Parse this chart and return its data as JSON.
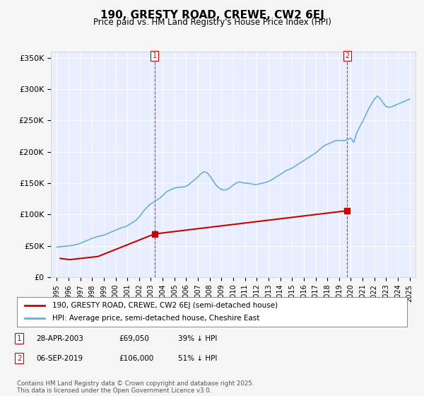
{
  "title": "190, GRESTY ROAD, CREWE, CW2 6EJ",
  "subtitle": "Price paid vs. HM Land Registry's House Price Index (HPI)",
  "hpi_color": "#6baed6",
  "price_color": "#cc0000",
  "dashed_line_color": "#cc0000",
  "background_color": "#f0f4ff",
  "plot_bg_color": "#e8eeff",
  "ylabel": "",
  "ylim": [
    0,
    360000
  ],
  "yticks": [
    0,
    50000,
    100000,
    150000,
    200000,
    250000,
    300000,
    350000
  ],
  "ytick_labels": [
    "£0",
    "£50K",
    "£100K",
    "£150K",
    "£200K",
    "£250K",
    "£300K",
    "£350K"
  ],
  "marker1_x": 2003.32,
  "marker1_price": 69050,
  "marker1_label": "1",
  "marker2_x": 2019.68,
  "marker2_price": 106000,
  "marker2_label": "2",
  "legend_line1": "190, GRESTY ROAD, CREWE, CW2 6EJ (semi-detached house)",
  "legend_line2": "HPI: Average price, semi-detached house, Cheshire East",
  "annotation1": "1    28-APR-2003         £69,050         39% ↓ HPI",
  "annotation2": "2    06-SEP-2019         £106,000        51% ↓ HPI",
  "footer": "Contains HM Land Registry data © Crown copyright and database right 2025.\nThis data is licensed under the Open Government Licence v3.0.",
  "hpi_data": {
    "years": [
      1995.0,
      1995.25,
      1995.5,
      1995.75,
      1996.0,
      1996.25,
      1996.5,
      1996.75,
      1997.0,
      1997.25,
      1997.5,
      1997.75,
      1998.0,
      1998.25,
      1998.5,
      1998.75,
      1999.0,
      1999.25,
      1999.5,
      1999.75,
      2000.0,
      2000.25,
      2000.5,
      2000.75,
      2001.0,
      2001.25,
      2001.5,
      2001.75,
      2002.0,
      2002.25,
      2002.5,
      2002.75,
      2003.0,
      2003.25,
      2003.5,
      2003.75,
      2004.0,
      2004.25,
      2004.5,
      2004.75,
      2005.0,
      2005.25,
      2005.5,
      2005.75,
      2006.0,
      2006.25,
      2006.5,
      2006.75,
      2007.0,
      2007.25,
      2007.5,
      2007.75,
      2008.0,
      2008.25,
      2008.5,
      2008.75,
      2009.0,
      2009.25,
      2009.5,
      2009.75,
      2010.0,
      2010.25,
      2010.5,
      2010.75,
      2011.0,
      2011.25,
      2011.5,
      2011.75,
      2012.0,
      2012.25,
      2012.5,
      2012.75,
      2013.0,
      2013.25,
      2013.5,
      2013.75,
      2014.0,
      2014.25,
      2014.5,
      2014.75,
      2015.0,
      2015.25,
      2015.5,
      2015.75,
      2016.0,
      2016.25,
      2016.5,
      2016.75,
      2017.0,
      2017.25,
      2017.5,
      2017.75,
      2018.0,
      2018.25,
      2018.5,
      2018.75,
      2019.0,
      2019.25,
      2019.5,
      2019.75,
      2020.0,
      2020.25,
      2020.5,
      2020.75,
      2021.0,
      2021.25,
      2021.5,
      2021.75,
      2022.0,
      2022.25,
      2022.5,
      2022.75,
      2023.0,
      2023.25,
      2023.5,
      2023.75,
      2024.0,
      2024.25,
      2024.5,
      2024.75,
      2025.0
    ],
    "values": [
      48000,
      48500,
      49000,
      49500,
      50000,
      50500,
      51500,
      52500,
      54000,
      56000,
      58000,
      60000,
      62000,
      63500,
      65000,
      66000,
      67000,
      69000,
      71000,
      73000,
      75000,
      77000,
      79000,
      80000,
      82000,
      85000,
      88000,
      91000,
      96000,
      102000,
      108000,
      113000,
      117000,
      120000,
      123000,
      126000,
      130000,
      135000,
      138000,
      140000,
      142000,
      143000,
      143500,
      144000,
      145000,
      148000,
      152000,
      156000,
      160000,
      165000,
      168000,
      167000,
      162000,
      155000,
      148000,
      143000,
      140000,
      139000,
      140000,
      143000,
      147000,
      150000,
      152000,
      151000,
      150000,
      150000,
      149000,
      148000,
      148000,
      149000,
      150000,
      151000,
      153000,
      155000,
      158000,
      161000,
      164000,
      167000,
      170000,
      172000,
      174000,
      177000,
      180000,
      183000,
      186000,
      189000,
      192000,
      195000,
      198000,
      202000,
      206000,
      210000,
      212000,
      214000,
      216000,
      218000,
      218000,
      218000,
      218000,
      220000,
      222000,
      215000,
      230000,
      240000,
      248000,
      258000,
      268000,
      276000,
      284000,
      289000,
      285000,
      278000,
      272000,
      271000,
      272000,
      274000,
      276000,
      278000,
      280000,
      282000,
      284000
    ]
  },
  "price_data": {
    "years": [
      1995.3,
      1996.1,
      1998.5,
      2003.32,
      2019.68
    ],
    "values": [
      30000,
      28000,
      33000,
      69050,
      106000
    ]
  }
}
